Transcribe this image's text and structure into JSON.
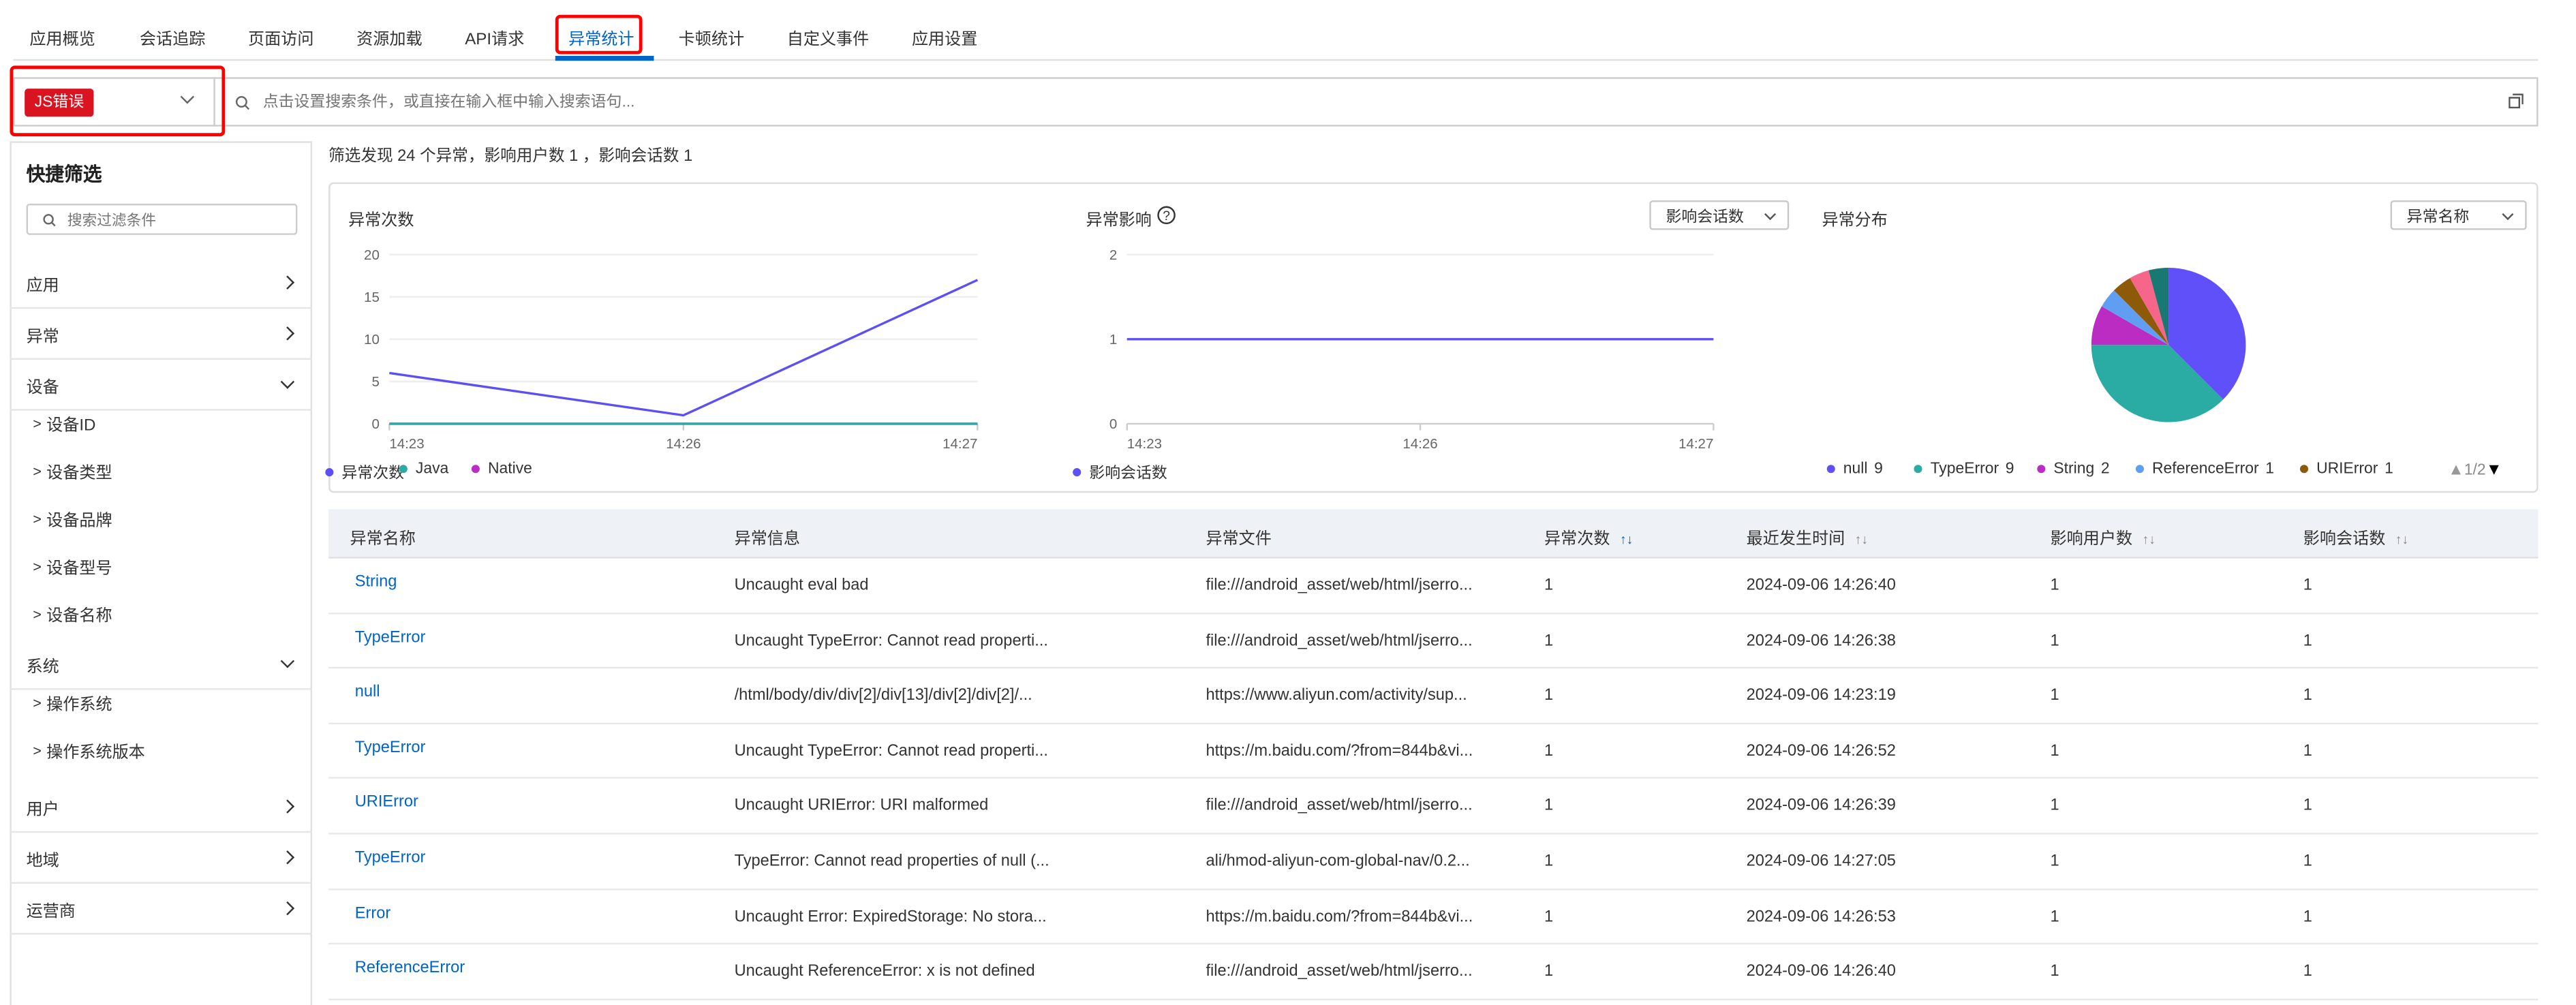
{
  "tabs": [
    "应用概览",
    "会话追踪",
    "页面访问",
    "资源加载",
    "API请求",
    "异常统计",
    "卡顿统计",
    "自定义事件",
    "应用设置"
  ],
  "active_tab": "异常统计",
  "search": {
    "type_badge": "JS错误",
    "placeholder": "点击设置搜索条件，或直接在输入框中输入搜索语句..."
  },
  "sidebar": {
    "title": "快捷筛选",
    "search_placeholder": "搜索过滤条件",
    "sections": [
      {
        "label": "应用",
        "expanded": false
      },
      {
        "label": "异常",
        "expanded": false
      },
      {
        "label": "设备",
        "expanded": true,
        "children": [
          "设备ID",
          "设备类型",
          "设备品牌",
          "设备型号",
          "设备名称"
        ]
      },
      {
        "label": "系统",
        "expanded": true,
        "children": [
          "操作系统",
          "操作系统版本"
        ]
      },
      {
        "label": "用户",
        "expanded": false
      },
      {
        "label": "地域",
        "expanded": false
      },
      {
        "label": "运营商",
        "expanded": false
      }
    ]
  },
  "summary": "筛选发现 24 个异常，影响用户数 1 ，影响会话数 1",
  "chart_data": [
    {
      "type": "line",
      "title": "异常次数",
      "x": [
        "14:23",
        "14:26",
        "14:27"
      ],
      "ylim": [
        0,
        20
      ],
      "yticks": [
        0,
        5,
        10,
        15,
        20
      ],
      "grid": true,
      "legend": "bottom-left",
      "series": [
        {
          "name": "异常次数",
          "values": [
            6,
            1,
            17
          ],
          "color": "#5b4ff5"
        },
        {
          "name": "Java",
          "values": [
            0,
            0,
            0
          ],
          "color": "#2aaca4"
        },
        {
          "name": "Native",
          "values": [
            0,
            0,
            0
          ],
          "color": "#bb2dc2"
        }
      ]
    },
    {
      "type": "line",
      "title": "异常影响",
      "selector": "影响会话数",
      "x": [
        "14:23",
        "14:26",
        "14:27"
      ],
      "ylim": [
        0,
        2
      ],
      "yticks": [
        0,
        1,
        2
      ],
      "grid": true,
      "legend": "bottom-left",
      "series": [
        {
          "name": "影响会话数",
          "values": [
            1,
            1,
            1
          ],
          "color": "#5b4ff5"
        }
      ]
    },
    {
      "type": "pie",
      "title": "异常分布",
      "selector": "异常名称",
      "legend": "bottom",
      "legend_page": "1/2",
      "slices": [
        {
          "name": "null",
          "value": 9,
          "color": "#6050fa"
        },
        {
          "name": "TypeError",
          "value": 9,
          "color": "#2aaca4"
        },
        {
          "name": "String",
          "value": 2,
          "color": "#bb2dc2"
        },
        {
          "name": "ReferenceError",
          "value": 1,
          "color": "#5f9ef3"
        },
        {
          "name": "URIError",
          "value": 1,
          "color": "#8c5a08"
        },
        {
          "name": "",
          "value": 1,
          "color": "#f5668a"
        },
        {
          "name": "",
          "value": 1,
          "color": "#1a7872"
        }
      ]
    }
  ],
  "table": {
    "headers": [
      "异常名称",
      "异常信息",
      "异常文件",
      "异常次数",
      "最近发生时间",
      "影响用户数",
      "影响会话数"
    ],
    "rows": [
      [
        "String",
        "Uncaught eval bad",
        "file:///android_asset/web/html/jserro...",
        "1",
        "2024-09-06 14:26:40",
        "1",
        "1"
      ],
      [
        "TypeError",
        "Uncaught TypeError: Cannot read properti...",
        "file:///android_asset/web/html/jserro...",
        "1",
        "2024-09-06 14:26:38",
        "1",
        "1"
      ],
      [
        "null",
        "/html/body/div/div[2]/div[13]/div[2]/div[2]/...",
        "https://www.aliyun.com/activity/sup...",
        "1",
        "2024-09-06 14:23:19",
        "1",
        "1"
      ],
      [
        "TypeError",
        "Uncaught TypeError: Cannot read properti...",
        "https://m.baidu.com/?from=844b&vi...",
        "1",
        "2024-09-06 14:26:52",
        "1",
        "1"
      ],
      [
        "URIError",
        "Uncaught URIError: URI malformed",
        "file:///android_asset/web/html/jserro...",
        "1",
        "2024-09-06 14:26:39",
        "1",
        "1"
      ],
      [
        "TypeError",
        "TypeError: Cannot read properties of null (...",
        "ali/hmod-aliyun-com-global-nav/0.2...",
        "1",
        "2024-09-06 14:27:05",
        "1",
        "1"
      ],
      [
        "Error",
        "Uncaught Error: ExpiredStorage: No stora...",
        "https://m.baidu.com/?from=844b&vi...",
        "1",
        "2024-09-06 14:26:53",
        "1",
        "1"
      ],
      [
        "ReferenceError",
        "Uncaught ReferenceError: x is not defined",
        "file:///android_asset/web/html/jserro...",
        "1",
        "2024-09-06 14:26:40",
        "1",
        "1"
      ]
    ]
  },
  "colors": {
    "accent": "#0064c8",
    "badge": "#d9131f",
    "highlight": "#ff0000"
  }
}
